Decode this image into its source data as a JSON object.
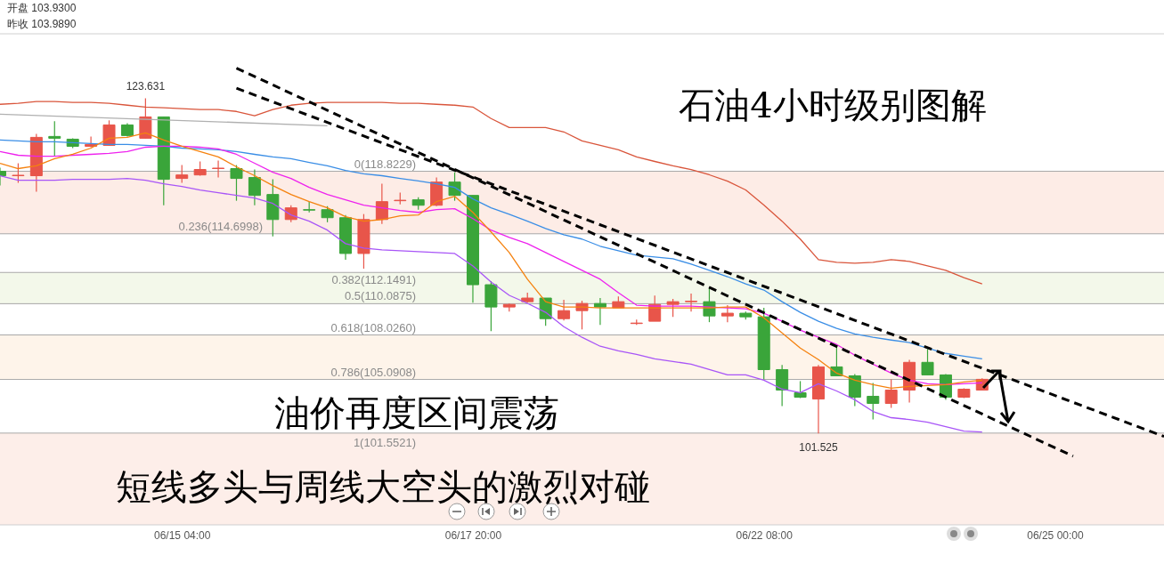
{
  "chart_data": {
    "type": "candlestick",
    "categories": [
      null,
      null,
      null,
      null,
      null,
      null,
      null,
      null,
      null,
      null,
      "06/15 04:00",
      null,
      null,
      null,
      null,
      null,
      null,
      null,
      null,
      null,
      null,
      null,
      null,
      null,
      null,
      null,
      "06/17 20:00",
      null,
      null,
      null,
      null,
      null,
      null,
      null,
      null,
      null,
      null,
      null,
      null,
      null,
      null,
      null,
      "06/22 08:00",
      null,
      null,
      null,
      null,
      null,
      null,
      null,
      null,
      null,
      null,
      null,
      null,
      null,
      null,
      null,
      "06/25 00:00",
      null,
      null,
      null,
      null,
      null,
      null
    ],
    "ohlc": [
      [
        118.82,
        119.06,
        117.88,
        118.53
      ],
      [
        118.53,
        119.35,
        118.06,
        118.56
      ],
      [
        118.53,
        121.29,
        117.47,
        121.06
      ],
      [
        121.12,
        122.12,
        119.82,
        121.0
      ],
      [
        120.94,
        121.0,
        120.35,
        120.47
      ],
      [
        120.47,
        121.12,
        120.41,
        120.59
      ],
      [
        120.53,
        122.18,
        120.53,
        121.88
      ],
      [
        121.88,
        122.0,
        121.12,
        121.18
      ],
      [
        121.0,
        123.631,
        121.0,
        122.41
      ],
      [
        122.41,
        122.41,
        116.58,
        118.29
      ],
      [
        118.35,
        119.23,
        118.06,
        118.58
      ],
      [
        118.58,
        119.47,
        118.53,
        118.94
      ],
      [
        119.0,
        119.53,
        118.41,
        119.03
      ],
      [
        119.0,
        119.23,
        116.88,
        118.35
      ],
      [
        118.41,
        118.94,
        116.58,
        117.23
      ],
      [
        117.29,
        118.29,
        114.52,
        115.64
      ],
      [
        115.64,
        116.58,
        115.46,
        116.41
      ],
      [
        116.29,
        116.82,
        116.11,
        116.26
      ],
      [
        116.29,
        116.52,
        115.46,
        115.76
      ],
      [
        115.76,
        115.93,
        112.99,
        113.4
      ],
      [
        113.4,
        116.0,
        112.4,
        115.64
      ],
      [
        115.64,
        118.0,
        115.35,
        116.82
      ],
      [
        116.88,
        117.41,
        116.64,
        116.91
      ],
      [
        116.94,
        117.11,
        116.29,
        116.58
      ],
      [
        116.58,
        118.41,
        116.52,
        118.11
      ],
      [
        118.11,
        118.76,
        116.88,
        117.23
      ],
      [
        117.23,
        117.23,
        110.16,
        111.34
      ],
      [
        111.34,
        111.58,
        108.28,
        109.87
      ],
      [
        109.87,
        110.1,
        109.57,
        110.04
      ],
      [
        110.22,
        110.81,
        110.16,
        110.46
      ],
      [
        110.46,
        110.46,
        108.63,
        109.1
      ],
      [
        109.1,
        110.34,
        108.98,
        109.63
      ],
      [
        109.63,
        110.28,
        108.39,
        110.1
      ],
      [
        110.1,
        110.46,
        108.69,
        109.87
      ],
      [
        109.81,
        110.57,
        109.81,
        110.22
      ],
      [
        108.78,
        109.04,
        108.69,
        108.81
      ],
      [
        108.93,
        110.63,
        108.93,
        110.04
      ],
      [
        110.04,
        110.4,
        109.22,
        110.22
      ],
      [
        110.22,
        110.75,
        109.57,
        110.25
      ],
      [
        110.22,
        111.1,
        108.87,
        109.28
      ],
      [
        109.28,
        109.99,
        108.87,
        109.46
      ],
      [
        109.46,
        109.57,
        109.04,
        109.22
      ],
      [
        109.22,
        109.81,
        105.1,
        105.74
      ],
      [
        105.74,
        106.04,
        103.33,
        104.39
      ],
      [
        104.21,
        104.98,
        103.86,
        103.92
      ],
      [
        103.8,
        106.04,
        101.525,
        105.92
      ],
      [
        105.92,
        107.28,
        105.33,
        105.33
      ],
      [
        105.33,
        105.45,
        103.33,
        103.92
      ],
      [
        103.98,
        104.86,
        102.45,
        103.51
      ],
      [
        103.51,
        105.1,
        103.21,
        104.39
      ],
      [
        104.39,
        106.39,
        103.57,
        106.22
      ],
      [
        106.22,
        107.1,
        105.39,
        105.39
      ],
      [
        105.39,
        105.45,
        103.74,
        103.92
      ],
      [
        103.92,
        104.51,
        103.86,
        104.45
      ],
      [
        104.39,
        105.16,
        104.39,
        105.1
      ],
      null,
      null,
      null,
      null,
      null,
      null,
      null,
      null,
      null,
      null
    ],
    "colors": [
      "#3aa53a",
      "#e8554a",
      "#e8554a",
      "#3aa53a",
      "#3aa53a",
      "#e8554a",
      "#e8554a",
      "#3aa53a",
      "#e8554a",
      "#3aa53a",
      "#e8554a",
      "#e8554a",
      "#e8554a",
      "#3aa53a",
      "#3aa53a",
      "#3aa53a",
      "#e8554a",
      "#3aa53a",
      "#3aa53a",
      "#3aa53a",
      "#e8554a",
      "#e8554a",
      "#e8554a",
      "#3aa53a",
      "#e8554a",
      "#3aa53a",
      "#3aa53a",
      "#3aa53a",
      "#e8554a",
      "#e8554a",
      "#3aa53a",
      "#e8554a",
      "#e8554a",
      "#3aa53a",
      "#e8554a",
      "#e8554a",
      "#e8554a",
      "#e8554a",
      "#e8554a",
      "#3aa53a",
      "#e8554a",
      "#3aa53a",
      "#3aa53a",
      "#3aa53a",
      "#3aa53a",
      "#e8554a",
      "#3aa53a",
      "#3aa53a",
      "#3aa53a",
      "#e8554a",
      "#e8554a",
      "#3aa53a",
      "#3aa53a",
      "#e8554a",
      "#e8554a",
      null,
      null,
      null,
      null,
      null,
      null,
      null,
      null,
      null,
      null
    ],
    "ylim": [
      95.5,
      127.89
    ],
    "tick_labels": "x",
    "series": [
      {
        "type": "line",
        "color": "#d9553b",
        "values": [
          123.24,
          123.3,
          123.42,
          123.42,
          123.36,
          123.36,
          123.3,
          123.18,
          123.06,
          123.01,
          122.95,
          122.89,
          122.89,
          122.77,
          122.48,
          122.89,
          123.18,
          123.3,
          123.36,
          123.36,
          123.36,
          123.36,
          123.3,
          123.3,
          123.24,
          123.18,
          123.06,
          122.3,
          121.71,
          121.71,
          121.71,
          121.42,
          120.83,
          120.53,
          120.24,
          119.77,
          119.47,
          119.18,
          118.94,
          118.59,
          118.17,
          117.59,
          116.59,
          115.53,
          114.35,
          112.99,
          112.82,
          112.76,
          112.82,
          112.99,
          112.88,
          112.58,
          112.29,
          111.81,
          111.4,
          null,
          null,
          null,
          null,
          null,
          null,
          null,
          null,
          null,
          null
        ]
      },
      {
        "type": "line",
        "color": "#3a8ee6",
        "values": [
          120.88,
          120.83,
          120.77,
          120.77,
          120.71,
          120.65,
          120.59,
          120.59,
          120.53,
          120.47,
          120.35,
          120.3,
          120.24,
          120.12,
          119.94,
          119.77,
          119.65,
          119.41,
          119.18,
          118.88,
          118.65,
          118.53,
          118.35,
          118.18,
          118.0,
          117.76,
          117.0,
          116.41,
          115.99,
          115.53,
          115.05,
          114.64,
          114.35,
          113.88,
          113.58,
          113.29,
          113.17,
          113.05,
          112.7,
          112.29,
          111.87,
          111.4,
          110.99,
          110.22,
          109.52,
          108.93,
          108.46,
          108.1,
          107.87,
          107.69,
          107.52,
          107.16,
          106.81,
          106.63,
          106.45,
          null,
          null,
          null,
          null,
          null,
          null,
          null,
          null,
          null,
          null
        ]
      },
      {
        "type": "line",
        "color": "#ee22ee",
        "values": [
          120.12,
          119.88,
          119.82,
          119.82,
          119.88,
          119.94,
          120.0,
          120.12,
          120.41,
          120.47,
          120.47,
          120.41,
          120.3,
          119.94,
          119.35,
          118.76,
          118.35,
          117.76,
          117.29,
          116.94,
          116.59,
          116.41,
          116.23,
          116.11,
          116.29,
          116.35,
          115.7,
          114.94,
          114.46,
          114.05,
          113.46,
          112.88,
          112.29,
          111.7,
          110.81,
          109.99,
          109.93,
          109.93,
          109.93,
          109.87,
          109.81,
          109.75,
          109.46,
          108.93,
          108.34,
          107.87,
          107.4,
          106.69,
          106.1,
          105.51,
          105.04,
          104.81,
          104.75,
          104.81,
          104.87,
          null,
          null,
          null,
          null,
          null,
          null,
          null,
          null,
          null,
          null
        ]
      },
      {
        "type": "line",
        "color": "#f5820f",
        "values": [
          119.35,
          119.0,
          119.18,
          119.65,
          119.94,
          120.35,
          121.0,
          121.06,
          121.36,
          120.88,
          120.47,
          120.12,
          119.77,
          119.12,
          118.53,
          117.88,
          117.29,
          116.82,
          116.41,
          115.82,
          115.53,
          115.64,
          115.88,
          115.94,
          116.82,
          117.17,
          116.11,
          114.82,
          113.46,
          111.7,
          110.22,
          109.87,
          109.87,
          109.81,
          109.81,
          109.81,
          109.81,
          109.81,
          109.81,
          109.81,
          109.87,
          109.87,
          109.16,
          108.16,
          107.16,
          106.4,
          105.51,
          105.04,
          104.75,
          104.51,
          104.63,
          104.69,
          104.75,
          104.92,
          105.04,
          null,
          null,
          null,
          null,
          null,
          null,
          null,
          null,
          null,
          null
        ]
      },
      {
        "type": "line",
        "color": "#a855f7",
        "values": [
          118.53,
          118.23,
          118.23,
          118.23,
          118.29,
          118.29,
          118.29,
          118.35,
          118.23,
          118.0,
          117.82,
          117.59,
          117.41,
          117.23,
          117.06,
          116.7,
          115.94,
          115.53,
          114.94,
          114.05,
          113.76,
          113.64,
          113.58,
          113.52,
          113.46,
          113.4,
          112.58,
          111.52,
          110.64,
          110.11,
          109.52,
          108.57,
          107.87,
          107.28,
          106.98,
          106.75,
          106.45,
          106.28,
          106.1,
          105.75,
          105.39,
          105.39,
          105.04,
          104.45,
          104.22,
          104.81,
          104.33,
          103.75,
          102.98,
          102.57,
          102.45,
          102.27,
          101.98,
          101.68,
          101.63,
          null,
          null,
          null,
          null,
          null,
          null,
          null,
          null,
          null,
          null
        ]
      },
      {
        "type": "line",
        "color": "#b0b0b0",
        "values": [
          122.59,
          null,
          null,
          null,
          null,
          null,
          null,
          null,
          null,
          null,
          null,
          null,
          null,
          null,
          null,
          null,
          null,
          null,
          121.83,
          null,
          null,
          null,
          null,
          null,
          null,
          null,
          null,
          null,
          null,
          null,
          null,
          null,
          null,
          null,
          null,
          null,
          null,
          null,
          null,
          null,
          null,
          null,
          null,
          null,
          null,
          null,
          null,
          null,
          null,
          null,
          null,
          null,
          null,
          null,
          null,
          null,
          null,
          null,
          null,
          null,
          null,
          null,
          null,
          null,
          null
        ]
      },
      {
        "type": "line",
        "color": "#000000",
        "line_style": "dashed",
        "values": [
          null,
          null,
          null,
          null,
          null,
          null,
          null,
          null,
          null,
          null,
          null,
          null,
          null,
          125.63,
          null,
          null,
          null,
          null,
          null,
          null,
          null,
          null,
          null,
          null,
          null,
          null,
          null,
          null,
          null,
          null,
          null,
          null,
          null,
          null,
          null,
          null,
          null,
          null,
          null,
          null,
          null,
          null,
          null,
          null,
          null,
          null,
          null,
          null,
          null,
          null,
          null,
          null,
          null,
          null,
          null,
          null,
          null,
          null,
          null,
          100.03,
          null,
          null,
          null,
          null,
          null
        ]
      },
      {
        "type": "line",
        "color": "#000000",
        "line_style": "dashed",
        "values": [
          null,
          null,
          null,
          null,
          null,
          null,
          null,
          null,
          null,
          null,
          null,
          null,
          null,
          124.3,
          null,
          null,
          null,
          null,
          null,
          null,
          null,
          null,
          null,
          null,
          null,
          null,
          null,
          null,
          null,
          null,
          null,
          null,
          null,
          null,
          null,
          null,
          null,
          null,
          null,
          null,
          null,
          null,
          null,
          null,
          null,
          null,
          null,
          null,
          null,
          null,
          null,
          null,
          null,
          null,
          null,
          null,
          null,
          null,
          null,
          null,
          null,
          null,
          null,
          null,
          101.33
        ]
      }
    ],
    "bands": [
      {
        "axis": "y",
        "from": 114.6998,
        "to": 118.8229,
        "color": "#fdece6"
      },
      {
        "axis": "y",
        "from": 110.0875,
        "to": 112.1491,
        "color": "#f3f8ea"
      },
      {
        "axis": "y",
        "from": 105.0908,
        "to": 108.026,
        "color": "#fef4ea"
      },
      {
        "axis": "y",
        "from": 95.5,
        "to": 101.5521,
        "color": "#fdeee9"
      }
    ],
    "ref_lines": [
      {
        "axis": "y",
        "value": 118.8229,
        "label": "0(118.8229)",
        "color": "#a8a8a8"
      },
      {
        "axis": "y",
        "value": 114.6998,
        "label": "0.236(114.6998)",
        "color": "#a8a8a8"
      },
      {
        "axis": "y",
        "value": 112.1491,
        "label": "0.382(112.1491)",
        "color": "#a8a8a8"
      },
      {
        "axis": "y",
        "value": 110.0875,
        "label": "0.5(110.0875)",
        "color": "#a8a8a8"
      },
      {
        "axis": "y",
        "value": 108.026,
        "label": "0.618(108.0260)",
        "color": "#a8a8a8"
      },
      {
        "axis": "y",
        "value": 105.0908,
        "label": "0.786(105.0908)",
        "color": "#a8a8a8"
      },
      {
        "axis": "y",
        "value": 101.5521,
        "label": "1(101.5521)",
        "color": "#a8a8a8"
      }
    ],
    "annotations": [
      "开盘 103.9300",
      "昨收 103.9890",
      "石油4小时级别图解",
      "油价再度区间震荡",
      "短线多头与周线大空头的激烈对碰",
      {
        "text": "123.631",
        "y": 123.631
      },
      {
        "text": "101.525",
        "y": 101.525
      }
    ]
  }
}
